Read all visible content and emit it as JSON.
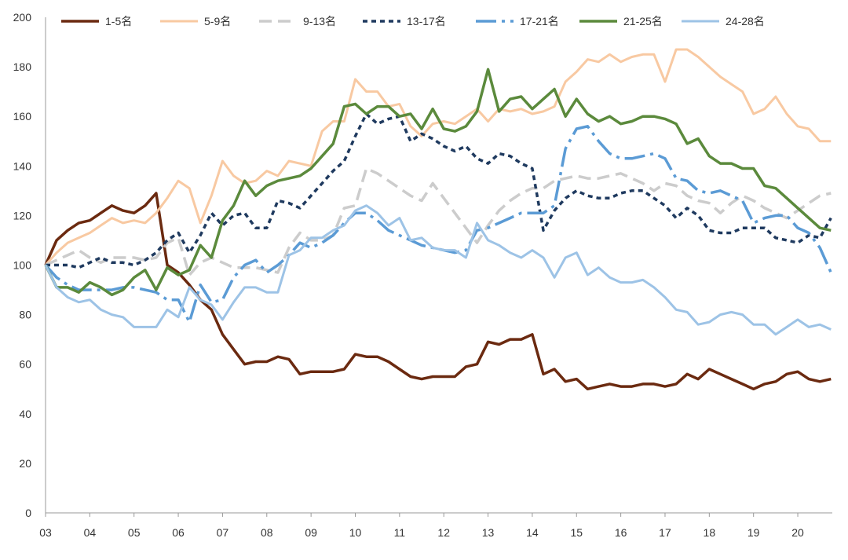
{
  "chart_data": {
    "type": "line",
    "title": "",
    "xlabel": "",
    "ylabel": "",
    "ylim": [
      0,
      200
    ],
    "yticks": [
      0,
      20,
      40,
      60,
      80,
      100,
      120,
      140,
      160,
      180,
      200
    ],
    "xticks": [
      "03",
      "04",
      "05",
      "06",
      "07",
      "08",
      "09",
      "10",
      "11",
      "12",
      "13",
      "14",
      "15",
      "16",
      "17",
      "18",
      "19",
      "20"
    ],
    "grid": false,
    "legend_position": "top",
    "x": [
      2003.0,
      2003.25,
      2003.5,
      2003.75,
      2004.0,
      2004.25,
      2004.5,
      2004.75,
      2005.0,
      2005.25,
      2005.5,
      2005.75,
      2006.0,
      2006.25,
      2006.5,
      2006.75,
      2007.0,
      2007.25,
      2007.5,
      2007.75,
      2008.0,
      2008.25,
      2008.5,
      2008.75,
      2009.0,
      2009.25,
      2009.5,
      2009.75,
      2010.0,
      2010.25,
      2010.5,
      2010.75,
      2011.0,
      2011.25,
      2011.5,
      2011.75,
      2012.0,
      2012.25,
      2012.5,
      2012.75,
      2013.0,
      2013.25,
      2013.5,
      2013.75,
      2014.0,
      2014.25,
      2014.5,
      2014.75,
      2015.0,
      2015.25,
      2015.5,
      2015.75,
      2016.0,
      2016.25,
      2016.5,
      2016.75,
      2017.0,
      2017.25,
      2017.5,
      2017.75,
      2018.0,
      2018.25,
      2018.5,
      2018.75,
      2019.0,
      2019.25,
      2019.5,
      2019.75,
      2020.0,
      2020.25,
      2020.5,
      2020.75
    ],
    "series": [
      {
        "name": "1-5名",
        "color": "#6b2a10",
        "dash": "solid",
        "width": 3.5,
        "values": [
          100,
          110,
          114,
          117,
          118,
          121,
          124,
          122,
          121,
          124,
          129,
          100,
          97,
          92,
          86,
          82,
          72,
          66,
          60,
          61,
          61,
          63,
          62,
          56,
          57,
          57,
          57,
          58,
          64,
          63,
          63,
          61,
          58,
          55,
          54,
          55,
          55,
          55,
          59,
          60,
          69,
          68,
          70,
          70,
          72,
          56,
          58,
          53,
          54,
          50,
          51,
          52,
          51,
          51,
          52,
          52,
          51,
          52,
          56,
          54,
          58,
          56,
          54,
          52,
          50,
          52,
          53,
          56,
          57,
          54,
          53,
          54
        ]
      },
      {
        "name": "5-9名",
        "color": "#f8c9a2",
        "dash": "solid",
        "width": 3,
        "values": [
          100,
          105,
          109,
          111,
          113,
          116,
          119,
          117,
          118,
          117,
          121,
          127,
          134,
          131,
          117,
          128,
          142,
          136,
          133,
          134,
          138,
          136,
          142,
          141,
          140,
          154,
          158,
          158,
          175,
          170,
          170,
          164,
          165,
          156,
          152,
          157,
          158,
          157,
          160,
          163,
          158,
          163,
          162,
          163,
          161,
          162,
          164,
          174,
          178,
          183,
          182,
          185,
          182,
          184,
          185,
          185,
          174,
          187,
          187,
          184,
          180,
          176,
          173,
          170,
          161,
          163,
          168,
          161,
          156,
          155,
          150,
          150
        ]
      },
      {
        "name": "9-13名",
        "color": "#cccccc",
        "dash": "16 8",
        "width": 3.5,
        "values": [
          100,
          102,
          104,
          106,
          103,
          101,
          103,
          103,
          103,
          102,
          103,
          109,
          111,
          96,
          101,
          103,
          101,
          99,
          99,
          99,
          98,
          97,
          107,
          113,
          110,
          110,
          112,
          123,
          124,
          139,
          137,
          134,
          131,
          128,
          126,
          133,
          127,
          121,
          115,
          109,
          116,
          122,
          126,
          129,
          131,
          131,
          134,
          135,
          136,
          135,
          135,
          136,
          137,
          135,
          133,
          130,
          133,
          132,
          128,
          126,
          125,
          121,
          125,
          128,
          126,
          123,
          121,
          119,
          122,
          125,
          128,
          129
        ]
      },
      {
        "name": "13-17名",
        "color": "#1f3a5f",
        "dash": "6 5",
        "width": 3.5,
        "values": [
          100,
          100,
          100,
          99,
          101,
          103,
          101,
          101,
          100,
          102,
          105,
          110,
          113,
          105,
          112,
          121,
          116,
          120,
          121,
          115,
          115,
          126,
          125,
          123,
          128,
          133,
          138,
          142,
          152,
          161,
          157,
          159,
          160,
          150,
          153,
          151,
          148,
          146,
          148,
          143,
          141,
          145,
          144,
          141,
          139,
          114,
          122,
          127,
          130,
          128,
          127,
          127,
          129,
          130,
          130,
          127,
          124,
          119,
          123,
          120,
          114,
          113,
          113,
          115,
          115,
          115,
          111,
          110,
          109,
          112,
          111,
          119
        ]
      },
      {
        "name": "17-21名",
        "color": "#5b9bd5",
        "dash": "26 7 4 7",
        "width": 3.5,
        "values": [
          100,
          95,
          92,
          90,
          90,
          90,
          90,
          91,
          91,
          90,
          89,
          86,
          86,
          77,
          92,
          85,
          86,
          95,
          100,
          102,
          97,
          100,
          104,
          109,
          107,
          109,
          112,
          117,
          121,
          121,
          118,
          114,
          112,
          110,
          108,
          107,
          106,
          105,
          106,
          114,
          115,
          117,
          119,
          121,
          121,
          121,
          124,
          147,
          155,
          156,
          150,
          145,
          143,
          143,
          144,
          145,
          143,
          135,
          134,
          130,
          129,
          130,
          128,
          126,
          117,
          119,
          120,
          120,
          115,
          113,
          107,
          97
        ]
      },
      {
        "name": "21-25名",
        "color": "#5b8a3c",
        "dash": "solid",
        "width": 3.5,
        "values": [
          100,
          91,
          91,
          89,
          93,
          91,
          88,
          90,
          95,
          98,
          90,
          99,
          96,
          98,
          108,
          103,
          118,
          124,
          134,
          128,
          132,
          134,
          135,
          136,
          139,
          144,
          149,
          164,
          165,
          161,
          164,
          164,
          160,
          161,
          155,
          163,
          155,
          154,
          156,
          162,
          179,
          162,
          167,
          168,
          163,
          167,
          171,
          160,
          167,
          161,
          158,
          160,
          157,
          158,
          160,
          160,
          159,
          157,
          149,
          151,
          144,
          141,
          141,
          139,
          139,
          132,
          131,
          127,
          123,
          119,
          115,
          114
        ]
      },
      {
        "name": "24-28名",
        "color": "#9dc3e6",
        "dash": "solid",
        "width": 3,
        "values": [
          100,
          91,
          87,
          85,
          86,
          82,
          80,
          79,
          75,
          75,
          75,
          82,
          79,
          91,
          86,
          84,
          78,
          85,
          91,
          91,
          89,
          89,
          104,
          106,
          111,
          111,
          114,
          116,
          122,
          124,
          121,
          116,
          119,
          110,
          111,
          107,
          106,
          106,
          103,
          117,
          110,
          108,
          105,
          103,
          106,
          103,
          95,
          103,
          105,
          96,
          99,
          95,
          93,
          93,
          94,
          91,
          87,
          82,
          81,
          76,
          77,
          80,
          81,
          80,
          76,
          76,
          72,
          75,
          78,
          75,
          76,
          74
        ]
      }
    ]
  }
}
